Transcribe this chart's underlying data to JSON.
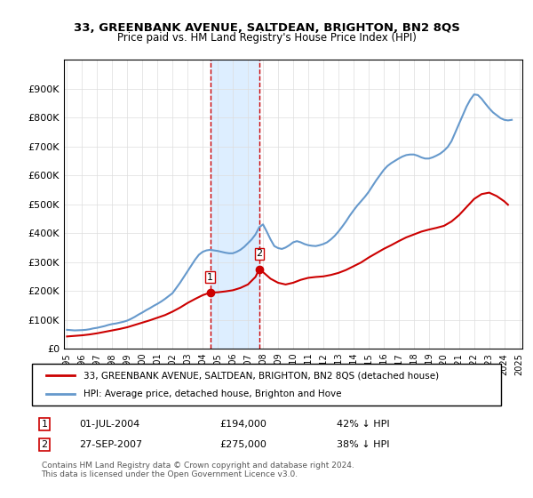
{
  "title": "33, GREENBANK AVENUE, SALTDEAN, BRIGHTON, BN2 8QS",
  "subtitle": "Price paid vs. HM Land Registry's House Price Index (HPI)",
  "legend_line1": "33, GREENBANK AVENUE, SALTDEAN, BRIGHTON, BN2 8QS (detached house)",
  "legend_line2": "HPI: Average price, detached house, Brighton and Hove",
  "sale1_date": "01-JUL-2004",
  "sale1_price": "£194,000",
  "sale1_pct": "42% ↓ HPI",
  "sale2_date": "27-SEP-2007",
  "sale2_price": "£275,000",
  "sale2_pct": "38% ↓ HPI",
  "footer": "Contains HM Land Registry data © Crown copyright and database right 2024.\nThis data is licensed under the Open Government Licence v3.0.",
  "hpi_years": [
    1995.0,
    1995.25,
    1995.5,
    1995.75,
    1996.0,
    1996.25,
    1996.5,
    1996.75,
    1997.0,
    1997.25,
    1997.5,
    1997.75,
    1998.0,
    1998.25,
    1998.5,
    1998.75,
    1999.0,
    1999.25,
    1999.5,
    1999.75,
    2000.0,
    2000.25,
    2000.5,
    2000.75,
    2001.0,
    2001.25,
    2001.5,
    2001.75,
    2002.0,
    2002.25,
    2002.5,
    2002.75,
    2003.0,
    2003.25,
    2003.5,
    2003.75,
    2004.0,
    2004.25,
    2004.5,
    2004.75,
    2005.0,
    2005.25,
    2005.5,
    2005.75,
    2006.0,
    2006.25,
    2006.5,
    2006.75,
    2007.0,
    2007.25,
    2007.5,
    2007.75,
    2008.0,
    2008.25,
    2008.5,
    2008.75,
    2009.0,
    2009.25,
    2009.5,
    2009.75,
    2010.0,
    2010.25,
    2010.5,
    2010.75,
    2011.0,
    2011.25,
    2011.5,
    2011.75,
    2012.0,
    2012.25,
    2012.5,
    2012.75,
    2013.0,
    2013.25,
    2013.5,
    2013.75,
    2014.0,
    2014.25,
    2014.5,
    2014.75,
    2015.0,
    2015.25,
    2015.5,
    2015.75,
    2016.0,
    2016.25,
    2016.5,
    2016.75,
    2017.0,
    2017.25,
    2017.5,
    2017.75,
    2018.0,
    2018.25,
    2018.5,
    2018.75,
    2019.0,
    2019.25,
    2019.5,
    2019.75,
    2020.0,
    2020.25,
    2020.5,
    2020.75,
    2021.0,
    2021.25,
    2021.5,
    2021.75,
    2022.0,
    2022.25,
    2022.5,
    2022.75,
    2023.0,
    2023.25,
    2023.5,
    2023.75,
    2024.0,
    2024.25,
    2024.5
  ],
  "hpi_values": [
    65000,
    64000,
    63000,
    63500,
    64000,
    65000,
    67000,
    70000,
    72000,
    75000,
    78000,
    82000,
    85000,
    87000,
    90000,
    93000,
    97000,
    103000,
    110000,
    118000,
    125000,
    133000,
    140000,
    148000,
    155000,
    163000,
    172000,
    182000,
    192000,
    210000,
    228000,
    248000,
    268000,
    288000,
    308000,
    325000,
    335000,
    340000,
    342000,
    340000,
    338000,
    335000,
    332000,
    330000,
    330000,
    335000,
    342000,
    352000,
    365000,
    378000,
    395000,
    420000,
    430000,
    405000,
    378000,
    355000,
    348000,
    345000,
    350000,
    358000,
    368000,
    372000,
    368000,
    362000,
    358000,
    356000,
    355000,
    358000,
    362000,
    368000,
    378000,
    390000,
    405000,
    422000,
    440000,
    460000,
    478000,
    495000,
    510000,
    525000,
    542000,
    562000,
    582000,
    600000,
    618000,
    632000,
    642000,
    650000,
    658000,
    665000,
    670000,
    672000,
    672000,
    668000,
    662000,
    658000,
    658000,
    662000,
    668000,
    675000,
    685000,
    698000,
    718000,
    748000,
    778000,
    808000,
    838000,
    862000,
    880000,
    878000,
    865000,
    848000,
    832000,
    818000,
    808000,
    798000,
    792000,
    790000,
    792000
  ],
  "red_years": [
    1995.0,
    1995.5,
    1996.0,
    1996.5,
    1997.0,
    1997.5,
    1998.0,
    1998.5,
    1999.0,
    1999.5,
    2000.0,
    2000.5,
    2001.0,
    2001.5,
    2002.0,
    2002.5,
    2003.0,
    2003.5,
    2004.0,
    2004.5,
    2004.5,
    2005.0,
    2005.5,
    2006.0,
    2006.5,
    2007.0,
    2007.5,
    2007.75,
    2008.0,
    2008.5,
    2009.0,
    2009.5,
    2010.0,
    2010.5,
    2011.0,
    2011.5,
    2012.0,
    2012.5,
    2013.0,
    2013.5,
    2014.0,
    2014.5,
    2015.0,
    2015.5,
    2016.0,
    2016.5,
    2017.0,
    2017.5,
    2018.0,
    2018.5,
    2019.0,
    2019.5,
    2020.0,
    2020.5,
    2021.0,
    2021.5,
    2022.0,
    2022.5,
    2023.0,
    2023.5,
    2024.0,
    2024.25
  ],
  "red_values": [
    42000,
    44000,
    46000,
    49000,
    53000,
    58000,
    63000,
    68000,
    74000,
    82000,
    90000,
    98000,
    107000,
    116000,
    128000,
    142000,
    158000,
    172000,
    185000,
    194000,
    194000,
    195000,
    198000,
    202000,
    210000,
    222000,
    248000,
    275000,
    265000,
    242000,
    228000,
    222000,
    228000,
    238000,
    245000,
    248000,
    250000,
    255000,
    262000,
    272000,
    285000,
    298000,
    315000,
    330000,
    345000,
    358000,
    372000,
    385000,
    395000,
    405000,
    412000,
    418000,
    425000,
    440000,
    462000,
    490000,
    518000,
    535000,
    540000,
    528000,
    510000,
    498000
  ],
  "sale1_x": 2004.5,
  "sale1_y": 194000,
  "sale2_x": 2007.75,
  "sale2_y": 275000,
  "shade_x1": 2004.5,
  "shade_x2": 2007.75,
  "red_color": "#cc0000",
  "blue_color": "#6699cc",
  "shade_color": "#ddeeff",
  "marker_color": "#cc0000",
  "xlim_left": 1994.8,
  "xlim_right": 2025.2,
  "ylim_bottom": 0,
  "ylim_top": 1000000,
  "yticks": [
    0,
    100000,
    200000,
    300000,
    400000,
    500000,
    600000,
    700000,
    800000,
    900000
  ],
  "ytick_labels": [
    "£0",
    "£100K",
    "£200K",
    "£300K",
    "£400K",
    "£500K",
    "£600K",
    "£700K",
    "£800K",
    "£900K"
  ],
  "xticks": [
    1995,
    1996,
    1997,
    1998,
    1999,
    2000,
    2001,
    2002,
    2003,
    2004,
    2005,
    2006,
    2007,
    2008,
    2009,
    2010,
    2011,
    2012,
    2013,
    2014,
    2015,
    2016,
    2017,
    2018,
    2019,
    2020,
    2021,
    2022,
    2023,
    2024,
    2025
  ]
}
